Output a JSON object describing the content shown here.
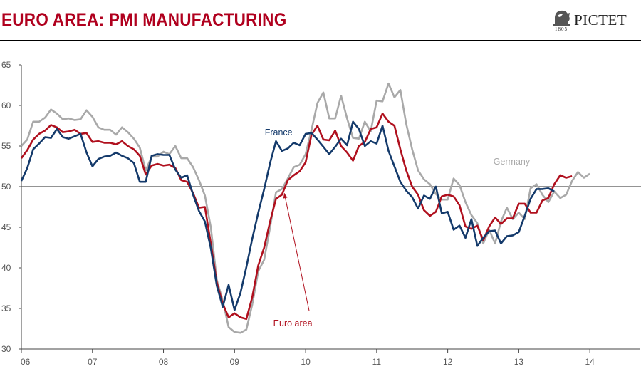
{
  "header": {
    "title": "EURO AREA: PMI MANUFACTURING",
    "logo_text": "PICTET",
    "logo_year": "1805"
  },
  "colors": {
    "title": "#b0001e",
    "euro_area": "#b0101e",
    "france": "#143a6b",
    "germany": "#a9a9a9",
    "reference_line": "#555555"
  },
  "chart_data": {
    "type": "line",
    "title": "EURO AREA: PMI MANUFACTURING",
    "xlabel": "",
    "ylabel": "",
    "xlim": [
      2006.0,
      2014.7
    ],
    "ylim": [
      30,
      65
    ],
    "y_ticks": [
      30,
      35,
      40,
      45,
      50,
      55,
      60,
      65
    ],
    "x_ticks": [
      {
        "value": 2006,
        "label": "06"
      },
      {
        "value": 2007,
        "label": "07"
      },
      {
        "value": 2008,
        "label": "08"
      },
      {
        "value": 2009,
        "label": "09"
      },
      {
        "value": 2010,
        "label": "10"
      },
      {
        "value": 2011,
        "label": "11"
      },
      {
        "value": 2012,
        "label": "12"
      },
      {
        "value": 2013,
        "label": "13"
      },
      {
        "value": 2014,
        "label": "14"
      }
    ],
    "reference_line": 50,
    "x_start": 2006.0,
    "x_step": 0.08333,
    "series": [
      {
        "name": "Germany",
        "label": "Germany",
        "color": "#a9a9a9",
        "values": [
          55.0,
          55.8,
          58.0,
          58.0,
          58.5,
          59.5,
          59.0,
          58.3,
          58.4,
          58.2,
          58.3,
          59.4,
          58.6,
          57.3,
          57.0,
          57.0,
          56.4,
          57.3,
          56.7,
          55.9,
          54.8,
          52.0,
          53.7,
          53.7,
          54.3,
          54.0,
          55.0,
          53.5,
          53.5,
          52.4,
          50.8,
          48.9,
          45.0,
          38.5,
          36.0,
          32.7,
          32.1,
          32.0,
          32.4,
          35.5,
          39.6,
          41.0,
          45.0,
          49.3,
          49.7,
          51.0,
          52.4,
          52.7,
          54.0,
          57.0,
          60.3,
          61.6,
          58.4,
          58.4,
          61.2,
          58.4,
          56.0,
          55.9,
          58.0,
          56.8,
          60.6,
          60.5,
          62.7,
          61.0,
          61.9,
          57.7,
          54.6,
          52.0,
          50.9,
          50.3,
          49.1,
          48.4,
          48.4,
          51.0,
          50.2,
          48.1,
          46.5,
          45.5,
          43.0,
          44.7,
          43.0,
          45.7,
          47.4,
          46.0,
          46.8,
          46.0,
          49.8,
          50.3,
          49.0,
          48.1,
          49.4,
          48.6,
          49.0,
          50.7,
          51.8,
          51.1,
          51.6
        ],
        "label_at": [
          2012.9,
          52.7
        ]
      },
      {
        "name": "Euro area",
        "label": "Euro area",
        "color": "#b0101e",
        "values": [
          53.5,
          54.5,
          55.8,
          56.5,
          56.9,
          57.6,
          57.3,
          56.7,
          56.8,
          57.0,
          56.5,
          56.6,
          55.5,
          55.6,
          55.4,
          55.4,
          55.2,
          55.6,
          55.0,
          54.6,
          53.8,
          51.5,
          52.6,
          52.8,
          52.6,
          52.7,
          52.3,
          50.8,
          50.6,
          49.2,
          47.4,
          47.5,
          43.0,
          38.2,
          35.6,
          33.9,
          34.4,
          33.9,
          33.7,
          36.4,
          40.3,
          42.5,
          45.7,
          48.5,
          49.0,
          50.8,
          51.4,
          51.9,
          53.0,
          56.4,
          57.5,
          55.8,
          55.7,
          56.9,
          55.0,
          54.2,
          53.2,
          55.0,
          55.5,
          57.1,
          57.3,
          59.0,
          58.0,
          57.5,
          54.6,
          52.0,
          50.0,
          49.0,
          47.1,
          46.4,
          46.9,
          48.8,
          49.0,
          48.8,
          47.7,
          45.1,
          44.8,
          45.2,
          43.4,
          45.1,
          46.2,
          45.4,
          46.1,
          46.1,
          47.9,
          47.9,
          46.8,
          46.8,
          48.3,
          48.6,
          50.3,
          51.4,
          51.1,
          51.3
        ],
        "label_at": [
          2009.82,
          32.8
        ],
        "annotation": {
          "from": [
            2010.05,
            34.7
          ],
          "to": [
            2009.7,
            49.2
          ]
        }
      },
      {
        "name": "France",
        "label": "France",
        "color": "#143a6b",
        "values": [
          50.7,
          52.3,
          54.6,
          55.3,
          56.1,
          56.0,
          57.1,
          56.1,
          55.9,
          56.2,
          56.5,
          54.2,
          52.5,
          53.4,
          53.7,
          53.8,
          54.2,
          53.8,
          53.5,
          52.9,
          50.6,
          50.6,
          53.8,
          54.0,
          53.9,
          53.9,
          52.1,
          51.1,
          51.4,
          49.0,
          47.0,
          45.7,
          42.4,
          37.8,
          35.2,
          37.9,
          34.8,
          36.9,
          40.1,
          43.6,
          46.8,
          49.7,
          52.9,
          55.6,
          54.4,
          54.7,
          55.4,
          55.1,
          56.5,
          56.6,
          55.8,
          54.9,
          54.0,
          54.9,
          55.9,
          55.1,
          58.0,
          57.1,
          55.0,
          55.6,
          55.3,
          57.5,
          54.4,
          52.5,
          50.6,
          49.5,
          48.7,
          47.3,
          48.9,
          48.5,
          50.0,
          46.7,
          46.9,
          44.7,
          45.2,
          43.7,
          46.0,
          42.7,
          43.7,
          44.5,
          44.6,
          43.0,
          43.9,
          44.0,
          44.4,
          46.4,
          48.5,
          49.7,
          49.7,
          49.8,
          49.4
        ],
        "label_at": [
          2009.62,
          56.3
        ]
      }
    ]
  }
}
